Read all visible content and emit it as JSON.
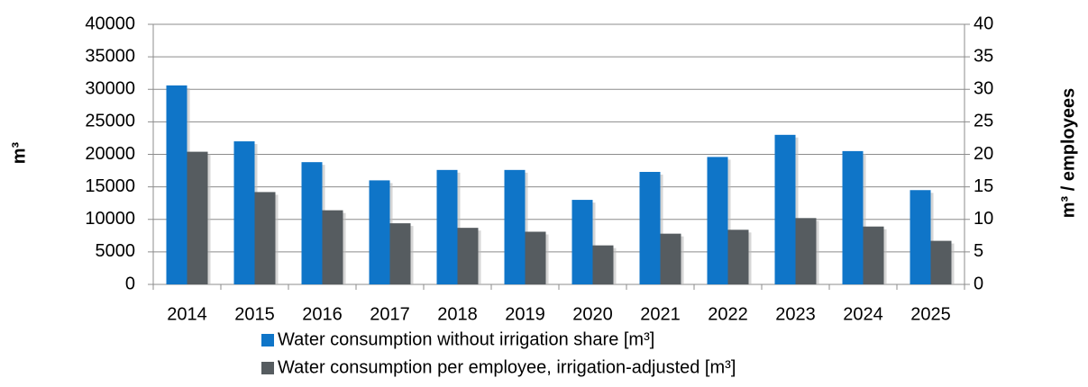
{
  "chart_data": {
    "type": "bar",
    "categories": [
      "2014",
      "2015",
      "2016",
      "2017",
      "2018",
      "2019",
      "2020",
      "2021",
      "2022",
      "2023",
      "2024",
      "2025"
    ],
    "series": [
      {
        "name": "Water consumption without irrigation share [m³]",
        "color": "#0f75c8",
        "values": [
          30600,
          22000,
          18800,
          16000,
          17600,
          17600,
          13000,
          17300,
          19600,
          23000,
          20500,
          14500
        ]
      },
      {
        "name": "Water consumption per employee, irrigation-adjusted [m³]",
        "color": "#565c60",
        "axis": "y2",
        "values": [
          20.4,
          14.2,
          11.4,
          9.4,
          8.7,
          8.1,
          6.0,
          7.8,
          8.4,
          10.2,
          8.9,
          6.7
        ]
      }
    ],
    "y_label": "m³",
    "y2_label": "m³ / employees",
    "ylim": [
      0,
      40000
    ],
    "yticks": [
      0,
      5000,
      10000,
      15000,
      20000,
      25000,
      30000,
      35000,
      40000
    ],
    "y2lim": [
      0,
      40
    ],
    "y2ticks": [
      0,
      5,
      10,
      15,
      20,
      25,
      30,
      35,
      40
    ],
    "grid": true,
    "legend": "bottom"
  }
}
